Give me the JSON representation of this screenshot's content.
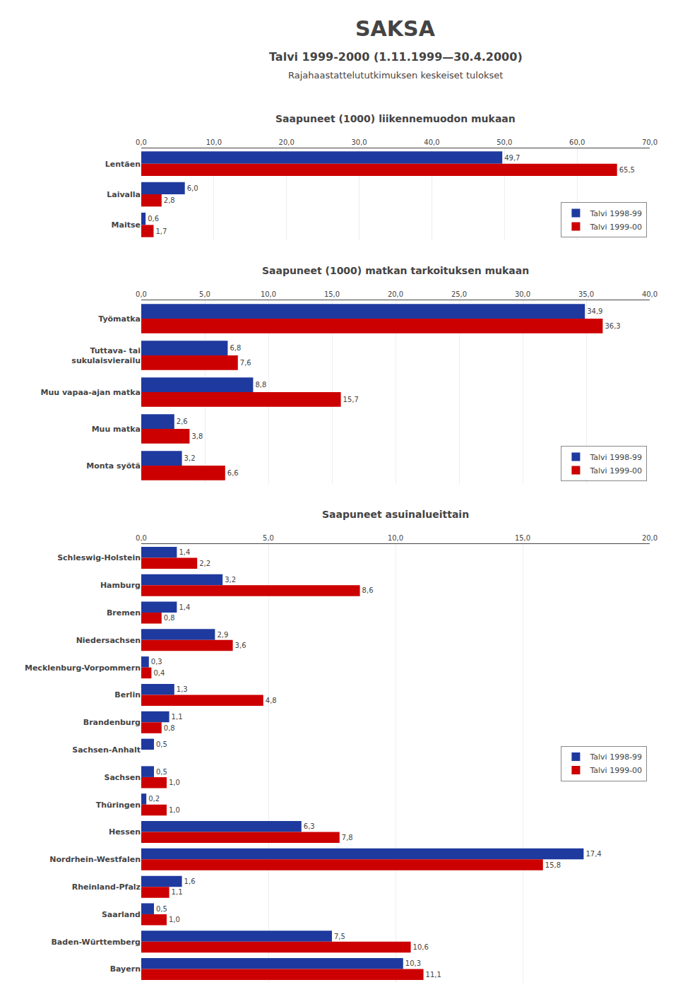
{
  "title": "SAKSA",
  "subtitle": [
    "Talvi 1999-2000 (1.11.1999—30.4.2000)",
    "Rajahaastattelututkimuksen keskeiset tulokset"
  ],
  "chart_data": [
    {
      "type": "bar",
      "orientation": "horizontal",
      "title": "Saapuneet (1000) liikennemuodon mukaan",
      "categories": [
        "Lentäen",
        "Laivalla",
        "Maitse"
      ],
      "series": [
        {
          "name": "Talvi 1998-99",
          "color": "#1F3A9E",
          "values": [
            49.7,
            6.0,
            0.6
          ],
          "value_labels": [
            "49,7",
            "6,0",
            "0,6"
          ]
        },
        {
          "name": "Talvi 1999-00",
          "color": "#CC0000",
          "values": [
            65.5,
            2.8,
            1.7
          ],
          "value_labels": [
            "65,5",
            "2,8",
            "1,7"
          ]
        }
      ],
      "xlim": [
        0,
        70
      ],
      "xticks": [
        {
          "value": 0,
          "label": "0,0"
        },
        {
          "value": 10,
          "label": "10,0"
        },
        {
          "value": 20,
          "label": "20,0"
        },
        {
          "value": 30,
          "label": "30,0"
        },
        {
          "value": 40,
          "label": "40,0"
        },
        {
          "value": 50,
          "label": "50,0"
        },
        {
          "value": 60,
          "label": "60,0"
        },
        {
          "value": 70,
          "label": "70,0"
        }
      ],
      "grid": true,
      "legend": "lower right",
      "data_labels": true
    },
    {
      "type": "bar",
      "orientation": "horizontal",
      "title": "Saapuneet (1000) matkan tarkoituksen mukaan",
      "categories": [
        "Työmatka",
        "Tuttava- tai\nsukulaisvierailu",
        "Muu vapaa-ajan matka",
        "Muu matka",
        "Monta syötä"
      ],
      "series": [
        {
          "name": "Talvi 1998-99",
          "color": "#1F3A9E",
          "values": [
            34.9,
            6.8,
            8.8,
            2.6,
            3.2
          ],
          "value_labels": [
            "34,9",
            "6,8",
            "8,8",
            "2,6",
            "3,2"
          ]
        },
        {
          "name": "Talvi 1999-00",
          "color": "#CC0000",
          "values": [
            36.3,
            7.6,
            15.7,
            3.8,
            6.6
          ],
          "value_labels": [
            "36,3",
            "7,6",
            "15,7",
            "3,8",
            "6,6"
          ]
        }
      ],
      "xlim": [
        0,
        40
      ],
      "xticks": [
        {
          "value": 0,
          "label": "0,0"
        },
        {
          "value": 5,
          "label": "5,0"
        },
        {
          "value": 10,
          "label": "10,0"
        },
        {
          "value": 15,
          "label": "15,0"
        },
        {
          "value": 20,
          "label": "20,0"
        },
        {
          "value": 25,
          "label": "25,0"
        },
        {
          "value": 30,
          "label": "30,0"
        },
        {
          "value": 35,
          "label": "35,0"
        },
        {
          "value": 40,
          "label": "40,0"
        }
      ],
      "grid": true,
      "legend": "lower right",
      "data_labels": true
    },
    {
      "type": "bar",
      "orientation": "horizontal",
      "title": "Saapuneet asuinalueittain",
      "categories": [
        "Schleswig-Holstein",
        "Hamburg",
        "Bremen",
        "Niedersachsen",
        "Mecklenburg-Vorpommern",
        "Berlin",
        "Brandenburg",
        "Sachsen-Anhalt",
        "Sachsen",
        "Thüringen",
        "Hessen",
        "Nordrhein-Westfalen",
        "Rheinland-Pfalz",
        "Saarland",
        "Baden-Württemberg",
        "Bayern"
      ],
      "series": [
        {
          "name": "Talvi 1998-99",
          "color": "#1F3A9E",
          "values": [
            1.4,
            3.2,
            1.4,
            2.9,
            0.3,
            1.3,
            1.1,
            0.5,
            0.5,
            0.2,
            6.3,
            17.4,
            1.6,
            0.5,
            7.5,
            10.3
          ],
          "value_labels": [
            "1,4",
            "3,2",
            "1,4",
            "2,9",
            "0,3",
            "1,3",
            "1,1",
            "0,5",
            "0,5",
            "0,2",
            "6,3",
            "17,4",
            "1,6",
            "0,5",
            "7,5",
            "10,3"
          ]
        },
        {
          "name": "Talvi 1999-00",
          "color": "#CC0000",
          "values": [
            2.2,
            8.6,
            0.8,
            3.6,
            0.4,
            4.8,
            0.8,
            0.0,
            1.0,
            1.0,
            7.8,
            15.8,
            1.1,
            1.0,
            10.6,
            11.1
          ],
          "value_labels": [
            "2,2",
            "8,6",
            "0,8",
            "3,6",
            "0,4",
            "4,8",
            "0,8",
            null,
            "1,0",
            "1,0",
            "7,8",
            "15,8",
            "1,1",
            "1,0",
            "10,6",
            "11,1"
          ]
        }
      ],
      "xlim": [
        0,
        20
      ],
      "xticks": [
        {
          "value": 0,
          "label": "0,0"
        },
        {
          "value": 5,
          "label": "5,0"
        },
        {
          "value": 10,
          "label": "10,0"
        },
        {
          "value": 15,
          "label": "15,0"
        },
        {
          "value": 20,
          "label": "20,0"
        }
      ],
      "grid": true,
      "legend": "right",
      "data_labels": true
    }
  ]
}
